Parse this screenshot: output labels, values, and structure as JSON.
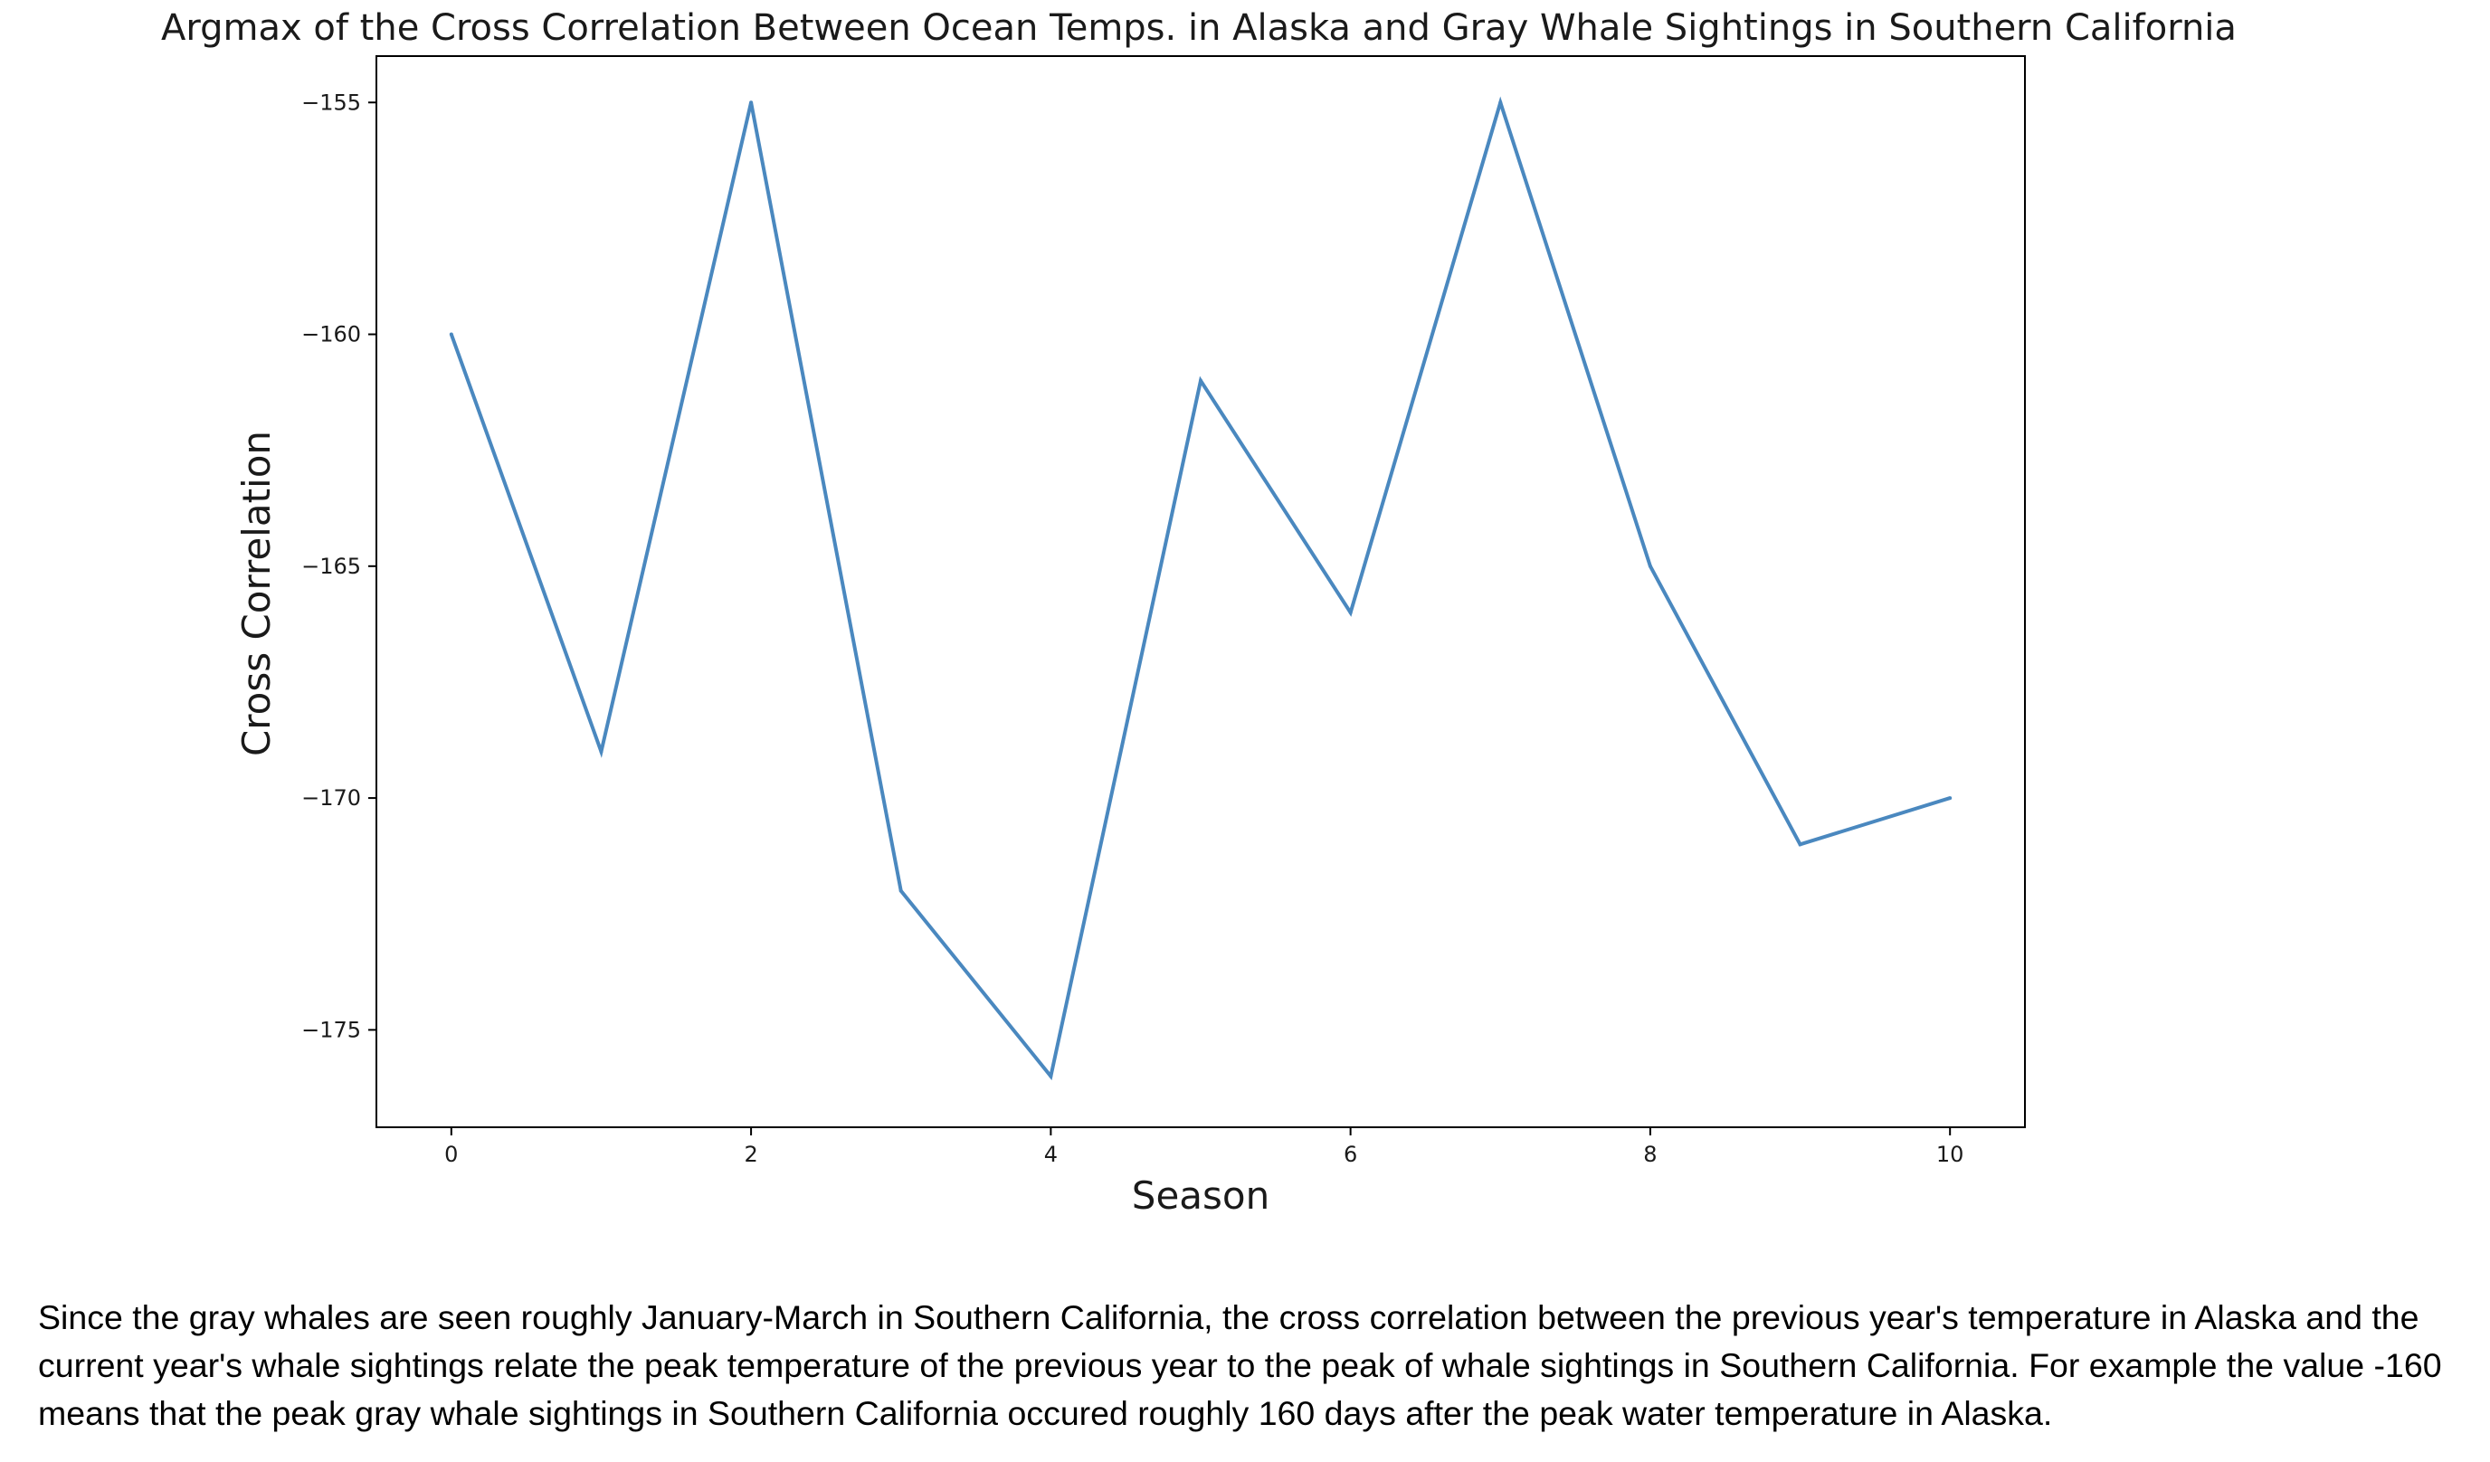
{
  "chart_data": {
    "type": "line",
    "title": "Argmax of the Cross Correlation Between Ocean Temps. in Alaska and Gray Whale Sightings in Southern California",
    "xlabel": "Season",
    "ylabel": "Cross Correlation",
    "x": [
      0,
      1,
      2,
      3,
      4,
      5,
      6,
      7,
      8,
      9,
      10
    ],
    "series": [
      {
        "values": [
          -160,
          -169,
          -155,
          -172,
          -176,
          -161,
          -166,
          -155,
          -165,
          -171,
          -170
        ],
        "color": "#4a88bf"
      }
    ],
    "xlim": [
      -0.5,
      10.5
    ],
    "ylim": [
      -177.1,
      -154.0
    ],
    "xticks": [
      0,
      2,
      4,
      6,
      8,
      10
    ],
    "yticks": [
      -155,
      -160,
      -165,
      -170,
      -175
    ],
    "grid": false,
    "legend": "none"
  },
  "caption": "Since the gray whales are seen roughly January-March in Southern California, the cross correlation between the previous year's temperature in Alaska and the current year's whale sightings relate the peak temperature of the previous year to the peak of whale sightings in Southern California. For example the value -160 means that the peak gray whale sightings in Southern California occured roughly 160 days after the peak water temperature in Alaska."
}
